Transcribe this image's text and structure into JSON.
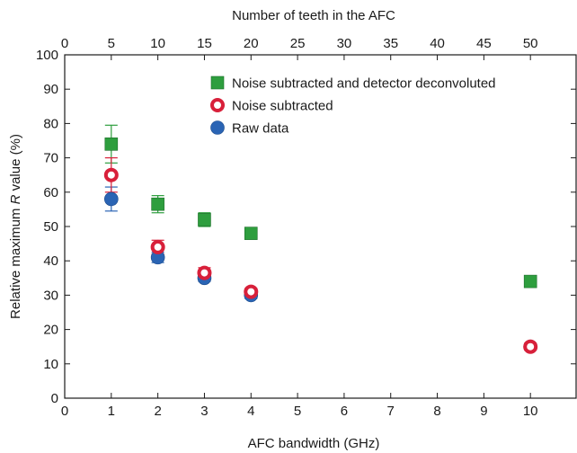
{
  "chart_data": {
    "type": "scatter",
    "xlabel": "AFC bandwidth (GHz)",
    "x2label": "Number of teeth in the AFC",
    "ylabel": "Relative maximum R value (%)",
    "ylabel_parts": [
      "Relative  maximum ",
      "R",
      " value (%)"
    ],
    "xlim": [
      0,
      11
    ],
    "ylim": [
      0,
      100
    ],
    "xticks": [
      0,
      1,
      2,
      3,
      4,
      5,
      6,
      7,
      8,
      9,
      10
    ],
    "yticks": [
      0,
      10,
      20,
      30,
      40,
      50,
      60,
      70,
      80,
      90,
      100
    ],
    "x2ticks": [
      0,
      5,
      10,
      15,
      20,
      25,
      30,
      35,
      40,
      45,
      50
    ],
    "legend_position": "top-right",
    "grid": false,
    "series": [
      {
        "name": "Noise subtracted and detector deconvoluted",
        "marker": "square",
        "color": "#2e9e3e",
        "points": [
          {
            "x": 1,
            "y": 74,
            "err": 5.5
          },
          {
            "x": 2,
            "y": 56.5,
            "err": 2.5
          },
          {
            "x": 3,
            "y": 52,
            "err": 2
          },
          {
            "x": 4,
            "y": 48,
            "err": 1.5
          },
          {
            "x": 10,
            "y": 34,
            "err": 1.5
          }
        ]
      },
      {
        "name": "Noise subtracted",
        "marker": "ring",
        "color": "#d8203a",
        "points": [
          {
            "x": 1,
            "y": 65,
            "err": 5
          },
          {
            "x": 2,
            "y": 44,
            "err": 2
          },
          {
            "x": 3,
            "y": 36.5,
            "err": 1.5
          },
          {
            "x": 4,
            "y": 31,
            "err": 1
          },
          {
            "x": 10,
            "y": 15,
            "err": 1
          }
        ]
      },
      {
        "name": "Raw data",
        "marker": "circle",
        "color": "#2a64b4",
        "points": [
          {
            "x": 1,
            "y": 58,
            "err": 3.5
          },
          {
            "x": 2,
            "y": 41,
            "err": 1.5
          },
          {
            "x": 3,
            "y": 35,
            "err": 1
          },
          {
            "x": 4,
            "y": 30,
            "err": 1
          },
          {
            "x": 10,
            "y": 15,
            "err": 0.5
          }
        ]
      }
    ]
  }
}
